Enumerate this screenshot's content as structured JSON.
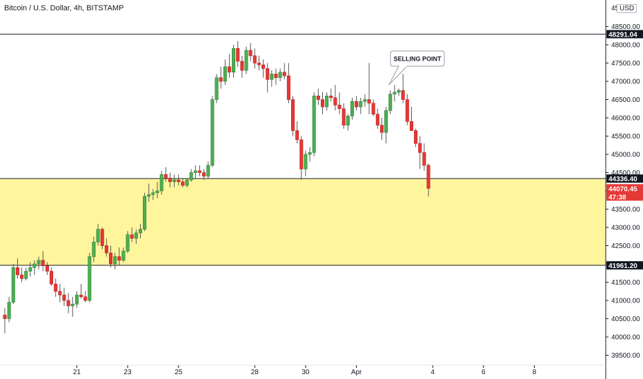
{
  "header": {
    "title": "Bitcoin / U.S. Dollar, 4h, BITSTAMP",
    "currency": "USD"
  },
  "colors": {
    "up": "#26a69a",
    "upFill": "#4caf50",
    "down": "#e53935",
    "zone": "#fff59d",
    "line": "#131722"
  },
  "chart_data": {
    "type": "candlestick",
    "title": "Bitcoin / U.S. Dollar, 4h, BITSTAMP",
    "y_ticks": [
      39500,
      40000,
      40500,
      41000,
      41500,
      42000,
      42500,
      43000,
      43500,
      44000,
      44500,
      45000,
      45500,
      46000,
      46500,
      47000,
      47500,
      48000,
      48500
    ],
    "y_ticks_top_partial": "45",
    "x_ticks": [
      {
        "label": "21",
        "i": 17
      },
      {
        "label": "23",
        "i": 29
      },
      {
        "label": "25",
        "i": 41
      },
      {
        "label": "28",
        "i": 59
      },
      {
        "label": "30",
        "i": 71
      },
      {
        "label": "Apr",
        "i": 83
      },
      {
        "label": "4",
        "i": 101
      },
      {
        "label": "6",
        "i": 113
      },
      {
        "label": "8",
        "i": 125
      }
    ],
    "horizontal_lines": [
      48291.04,
      44336.4,
      41961.2
    ],
    "zone": {
      "from": 41961.2,
      "to": 44336.4
    },
    "price_tags": [
      {
        "label": "48291.04",
        "value": 48291.04,
        "style": "dark"
      },
      {
        "label": "44336.40",
        "value": 44336.4,
        "style": "dark"
      },
      {
        "label": "44070.45",
        "sub": "47:38",
        "value": 44070.45,
        "style": "red"
      },
      {
        "label": "41961.20",
        "value": 41961.2,
        "style": "dark"
      }
    ],
    "annotation": {
      "text": "SELLING POINT",
      "at_i": 90,
      "at_price": 46900
    },
    "candles": [
      [
        40600,
        40800,
        40100,
        40500
      ],
      [
        40500,
        41100,
        40400,
        40950
      ],
      [
        40950,
        42000,
        40900,
        41900
      ],
      [
        41900,
        42150,
        41600,
        41700
      ],
      [
        41700,
        41900,
        41500,
        41600
      ],
      [
        41600,
        41900,
        41550,
        41800
      ],
      [
        41800,
        42050,
        41650,
        41900
      ],
      [
        41900,
        42100,
        41700,
        42000
      ],
      [
        42000,
        42200,
        41850,
        42100
      ],
      [
        42100,
        42350,
        41800,
        41950
      ],
      [
        41950,
        42050,
        41700,
        41800
      ],
      [
        41800,
        41900,
        41400,
        41450
      ],
      [
        41450,
        41600,
        41100,
        41250
      ],
      [
        41250,
        41450,
        40950,
        41150
      ],
      [
        41150,
        41350,
        40850,
        41000
      ],
      [
        41000,
        41200,
        40650,
        40850
      ],
      [
        40850,
        41100,
        40550,
        40900
      ],
      [
        40900,
        41250,
        40800,
        41150
      ],
      [
        41150,
        41450,
        41050,
        41100
      ],
      [
        41100,
        41250,
        40950,
        41000
      ],
      [
        41000,
        42300,
        40950,
        42200
      ],
      [
        42200,
        42750,
        42050,
        42600
      ],
      [
        42600,
        43100,
        42500,
        42950
      ],
      [
        42950,
        43000,
        42400,
        42500
      ],
      [
        42500,
        42700,
        42200,
        42300
      ],
      [
        42300,
        42500,
        41900,
        42000
      ],
      [
        42000,
        42300,
        41850,
        42200
      ],
      [
        42200,
        42450,
        41950,
        42100
      ],
      [
        42100,
        42450,
        42050,
        42350
      ],
      [
        42350,
        42900,
        42300,
        42800
      ],
      [
        42800,
        43000,
        42600,
        42700
      ],
      [
        42700,
        42950,
        42550,
        42850
      ],
      [
        42850,
        43100,
        42700,
        42950
      ],
      [
        42950,
        43950,
        42900,
        43850
      ],
      [
        43850,
        44200,
        43700,
        43900
      ],
      [
        43900,
        44050,
        43750,
        43950
      ],
      [
        43950,
        44250,
        43800,
        44000
      ],
      [
        44000,
        44550,
        43900,
        44450
      ],
      [
        44450,
        44650,
        44250,
        44350
      ],
      [
        44350,
        44500,
        44100,
        44250
      ],
      [
        44250,
        44450,
        44100,
        44300
      ],
      [
        44300,
        44450,
        44150,
        44250
      ],
      [
        44250,
        44350,
        44100,
        44150
      ],
      [
        44150,
        44350,
        44100,
        44300
      ],
      [
        44300,
        44600,
        44250,
        44500
      ],
      [
        44500,
        44700,
        44350,
        44550
      ],
      [
        44550,
        44700,
        44400,
        44500
      ],
      [
        44500,
        44600,
        44300,
        44400
      ],
      [
        44400,
        44800,
        44350,
        44700
      ],
      [
        44700,
        46600,
        44650,
        46500
      ],
      [
        46500,
        47200,
        46400,
        47100
      ],
      [
        47100,
        47400,
        46800,
        47000
      ],
      [
        47000,
        47600,
        46900,
        47400
      ],
      [
        47400,
        47750,
        47100,
        47250
      ],
      [
        47250,
        48000,
        47100,
        47900
      ],
      [
        47900,
        48100,
        47400,
        47550
      ],
      [
        47550,
        47700,
        47100,
        47300
      ],
      [
        47300,
        47950,
        47200,
        47850
      ],
      [
        47850,
        48050,
        47550,
        47700
      ],
      [
        47700,
        47900,
        47350,
        47500
      ],
      [
        47500,
        47700,
        47300,
        47450
      ],
      [
        47450,
        47600,
        47100,
        47350
      ],
      [
        47350,
        47500,
        46700,
        47050
      ],
      [
        47050,
        47300,
        46850,
        47200
      ],
      [
        47200,
        47350,
        46900,
        47100
      ],
      [
        47100,
        47350,
        47000,
        47250
      ],
      [
        47250,
        47500,
        47050,
        47150
      ],
      [
        47150,
        47500,
        46400,
        46500
      ],
      [
        46500,
        46600,
        45500,
        45650
      ],
      [
        45650,
        45900,
        45300,
        45400
      ],
      [
        45400,
        45500,
        44300,
        44600
      ],
      [
        44600,
        45100,
        44400,
        45000
      ],
      [
        45000,
        45200,
        44800,
        45050
      ],
      [
        45050,
        46700,
        44950,
        46600
      ],
      [
        46600,
        46800,
        46350,
        46500
      ],
      [
        46500,
        46700,
        46100,
        46300
      ],
      [
        46300,
        46700,
        46200,
        46600
      ],
      [
        46600,
        46800,
        46450,
        46550
      ],
      [
        46550,
        46900,
        46200,
        46350
      ],
      [
        46350,
        46700,
        46100,
        46250
      ],
      [
        46250,
        46400,
        45700,
        45800
      ],
      [
        45800,
        46100,
        45650,
        46050
      ],
      [
        46050,
        46550,
        45950,
        46450
      ],
      [
        46450,
        46600,
        46200,
        46300
      ],
      [
        46300,
        46550,
        46100,
        46450
      ],
      [
        46450,
        46650,
        46300,
        46500
      ],
      [
        46500,
        47500,
        46100,
        46400
      ],
      [
        46400,
        46500,
        46050,
        46100
      ],
      [
        46100,
        46250,
        45700,
        45800
      ],
      [
        45800,
        46000,
        45400,
        45600
      ],
      [
        45600,
        46300,
        45300,
        46200
      ],
      [
        46200,
        46750,
        46100,
        46650
      ],
      [
        46650,
        46900,
        46450,
        46700
      ],
      [
        46700,
        46800,
        46600,
        46750
      ],
      [
        46750,
        47200,
        46400,
        46500
      ],
      [
        46500,
        46650,
        45800,
        45900
      ],
      [
        45900,
        46300,
        45700,
        45650
      ],
      [
        45650,
        45700,
        45200,
        45300
      ],
      [
        45300,
        45500,
        44600,
        45050
      ],
      [
        45050,
        45300,
        44550,
        44700
      ],
      [
        44700,
        44750,
        43850,
        44070
      ]
    ]
  }
}
